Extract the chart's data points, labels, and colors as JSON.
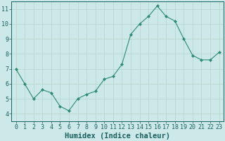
{
  "x": [
    0,
    1,
    2,
    3,
    4,
    5,
    6,
    7,
    8,
    9,
    10,
    11,
    12,
    13,
    14,
    15,
    16,
    17,
    18,
    19,
    20,
    21,
    22,
    23
  ],
  "y": [
    7.0,
    6.0,
    5.0,
    5.6,
    5.4,
    4.5,
    4.2,
    5.0,
    5.3,
    5.5,
    6.3,
    6.5,
    7.3,
    9.3,
    10.0,
    10.5,
    11.2,
    10.5,
    10.2,
    9.0,
    7.9,
    7.6,
    7.6,
    8.1
  ],
  "line_color": "#2e8b74",
  "marker": "D",
  "marker_size": 2.0,
  "bg_color": "#cce8e8",
  "grid_color": "#b8d8d0",
  "axis_color": "#1a6060",
  "xlabel": "Humidex (Indice chaleur)",
  "xlabel_fontsize": 7.5,
  "tick_fontsize": 6.0,
  "ylim": [
    3.5,
    11.5
  ],
  "xlim": [
    -0.5,
    23.5
  ],
  "yticks": [
    4,
    5,
    6,
    7,
    8,
    9,
    10,
    11
  ],
  "xticks": [
    0,
    1,
    2,
    3,
    4,
    5,
    6,
    7,
    8,
    9,
    10,
    11,
    12,
    13,
    14,
    15,
    16,
    17,
    18,
    19,
    20,
    21,
    22,
    23
  ]
}
